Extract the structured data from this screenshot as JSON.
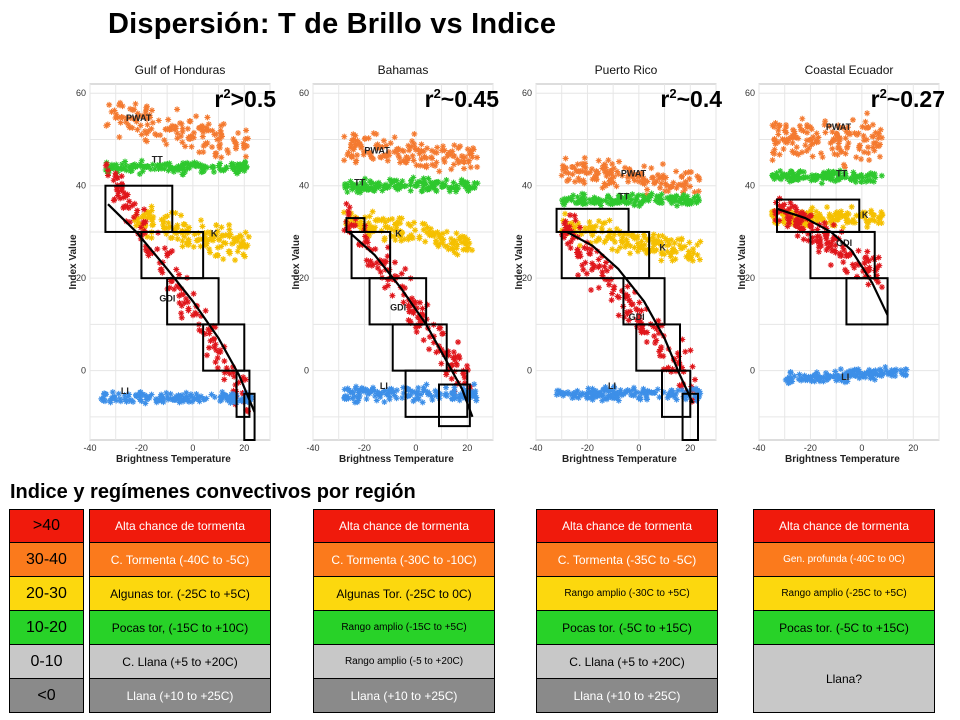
{
  "title": "Dispersión: T de Brillo vs Indice",
  "subtitle": "Indice y regímenes convectivos por región",
  "colors": {
    "pwat": "#f47a30",
    "tt": "#2ec82e",
    "k": "#f5c000",
    "gdi": "#e0161b",
    "li": "#3d8fe8",
    "red": "#f01a0c",
    "orange": "#fb7a1c",
    "yellow": "#fcd80e",
    "green": "#28d228",
    "gray": "#c8c8c8",
    "darkgray": "#8a8a8a"
  },
  "legend": {
    "rows": [
      {
        "label": ">40",
        "color": "red"
      },
      {
        "label": "30-40",
        "color": "orange"
      },
      {
        "label": "20-30",
        "color": "yellow"
      },
      {
        "label": "10-20",
        "color": "green"
      },
      {
        "label": "0-10",
        "color": "gray"
      },
      {
        "label": "<0",
        "color": "darkgray"
      }
    ]
  },
  "regimes": [
    {
      "cells": [
        {
          "text": "Alta chance de tormenta",
          "color": "red",
          "small": false
        },
        {
          "text": "C. Tormenta (-40C to -5C)",
          "color": "orange",
          "small": false
        },
        {
          "text": "Algunas tor.  (-25C to +5C)",
          "color": "yellow",
          "small": false
        },
        {
          "text": "Pocas tor, (-15C to +10C)",
          "color": "green",
          "small": false
        },
        {
          "text": "C. Llana (+5 to +20C)",
          "color": "gray",
          "small": false
        },
        {
          "text": "Llana (+10 to +25C)",
          "color": "darkgray",
          "small": false
        }
      ]
    },
    {
      "cells": [
        {
          "text": "Alta chance de tormenta",
          "color": "red",
          "small": false
        },
        {
          "text": "C. Tormenta (-30C to -10C)",
          "color": "orange",
          "small": false
        },
        {
          "text": "Algunas Tor. (-25C to 0C)",
          "color": "yellow",
          "small": false
        },
        {
          "text": "Rango amplio  (-15C to +5C)",
          "color": "green",
          "small": true
        },
        {
          "text": "Rango amplio  (-5 to +20C)",
          "color": "gray",
          "small": true
        },
        {
          "text": "Llana (+10 to +25C)",
          "color": "darkgray",
          "small": false
        }
      ]
    },
    {
      "cells": [
        {
          "text": "Alta chance de tormenta",
          "color": "red",
          "small": false
        },
        {
          "text": "C. Tormenta (-35C to -5C)",
          "color": "orange",
          "small": false
        },
        {
          "text": "Rango amplio (-30C to +5C)",
          "color": "yellow",
          "small": true
        },
        {
          "text": "Pocas tor.  (-5C to +15C)",
          "color": "green",
          "small": false
        },
        {
          "text": "C. Llana (+5 to +20C)",
          "color": "gray",
          "small": false
        },
        {
          "text": "Llana (+10 to +25C)",
          "color": "darkgray",
          "small": false
        }
      ]
    },
    {
      "cells": [
        {
          "text": "Alta chance de tormenta",
          "color": "red",
          "small": false,
          "rows": 1
        },
        {
          "text": "Gen. profunda  (-40C to 0C)",
          "color": "orange",
          "small": true,
          "rows": 1
        },
        {
          "text": "Rango amplio (-25C to +5C)",
          "color": "yellow",
          "small": true,
          "rows": 1
        },
        {
          "text": "Pocas tor. (-5C to +15C)",
          "color": "green",
          "small": false,
          "rows": 1
        },
        {
          "text": "Llana?",
          "color": "gray",
          "small": false,
          "rows": 2
        }
      ]
    }
  ],
  "chart_data": [
    {
      "type": "scatter",
      "title": "Gulf of Honduras",
      "r2": {
        "prefix": "r",
        "sup": "2",
        "suffix": ">0.5"
      },
      "xlabel": "Brightness Temperature",
      "ylabel": "Index Value",
      "xlim": [
        -40,
        30
      ],
      "ylim": [
        -15,
        62
      ],
      "xticks": [
        -40,
        -20,
        0,
        20
      ],
      "yticks": [
        0,
        20,
        40,
        60
      ],
      "grid": true,
      "clusters": [
        {
          "name": "PWAT",
          "color": "pwat",
          "xmin": -34,
          "xmax": 22,
          "ycenter": 52,
          "yspread": 4,
          "tilt": -0.12,
          "label_x": -26,
          "label_y": 54
        },
        {
          "name": "TT",
          "color": "tt",
          "xmin": -34,
          "xmax": 22,
          "ycenter": 44,
          "yspread": 1.3,
          "tilt": 0,
          "label_x": -16,
          "label_y": 45
        },
        {
          "name": "K",
          "color": "k",
          "xmin": -24,
          "xmax": 22,
          "ycenter": 30,
          "yspread": 3.5,
          "tilt": -0.15,
          "label_x": 7,
          "label_y": 29
        },
        {
          "name": "GDI",
          "color": "gdi",
          "xmin": -34,
          "xmax": 22,
          "ycenter": 18,
          "yspread": 5,
          "tilt": -0.9,
          "label_x": -13,
          "label_y": 15
        },
        {
          "name": "LI",
          "color": "li",
          "xmin": -36,
          "xmax": 24,
          "ycenter": -6,
          "yspread": 1.3,
          "tilt": 0,
          "label_x": -28,
          "label_y": -5
        }
      ],
      "fit": [
        [
          -33,
          36
        ],
        [
          -22,
          30
        ],
        [
          -10,
          22
        ],
        [
          0,
          15
        ],
        [
          10,
          7
        ],
        [
          18,
          -1
        ],
        [
          24,
          -9
        ]
      ],
      "boxes": [
        [
          -34,
          -8,
          30,
          40
        ],
        [
          -20,
          4,
          20,
          30
        ],
        [
          -10,
          10,
          10,
          20
        ],
        [
          4,
          20,
          0,
          10
        ],
        [
          17,
          22,
          -10,
          0
        ],
        [
          20,
          24,
          -15,
          -5
        ]
      ]
    },
    {
      "type": "scatter",
      "title": "Bahamas",
      "r2": {
        "prefix": "r",
        "sup": "2",
        "suffix": "~0.45"
      },
      "xlabel": "Brightness Temperature",
      "ylabel": "Index Value",
      "xlim": [
        -40,
        30
      ],
      "ylim": [
        -15,
        62
      ],
      "xticks": [
        -40,
        -20,
        0,
        20
      ],
      "yticks": [
        0,
        20,
        40,
        60
      ],
      "grid": true,
      "clusters": [
        {
          "name": "PWAT",
          "color": "pwat",
          "xmin": -28,
          "xmax": 24,
          "ycenter": 47,
          "yspread": 3.5,
          "tilt": -0.05,
          "label_x": -20,
          "label_y": 47
        },
        {
          "name": "TT",
          "color": "tt",
          "xmin": -28,
          "xmax": 24,
          "ycenter": 40,
          "yspread": 1.5,
          "tilt": 0,
          "label_x": -24,
          "label_y": 40
        },
        {
          "name": "K",
          "color": "k",
          "xmin": -28,
          "xmax": 22,
          "ycenter": 30,
          "yspread": 3,
          "tilt": -0.1,
          "label_x": -8,
          "label_y": 29
        },
        {
          "name": "GDI",
          "color": "gdi",
          "xmin": -28,
          "xmax": 22,
          "ycenter": 15,
          "yspread": 5.5,
          "tilt": -0.75,
          "label_x": -10,
          "label_y": 13
        },
        {
          "name": "LI",
          "color": "li",
          "xmin": -28,
          "xmax": 24,
          "ycenter": -5,
          "yspread": 1.8,
          "tilt": 0,
          "label_x": -14,
          "label_y": -4
        }
      ],
      "fit": [
        [
          -26,
          30
        ],
        [
          -16,
          25
        ],
        [
          -6,
          18
        ],
        [
          4,
          10
        ],
        [
          12,
          2
        ],
        [
          18,
          -4
        ],
        [
          22,
          -10
        ]
      ],
      "boxes": [
        [
          -27,
          -20,
          30,
          33
        ],
        [
          -25,
          -10,
          20,
          30
        ],
        [
          -18,
          4,
          10,
          20
        ],
        [
          -9,
          12,
          0,
          10
        ],
        [
          -4,
          20,
          -10,
          0
        ],
        [
          9,
          21,
          -12,
          -3
        ]
      ]
    },
    {
      "type": "scatter",
      "title": "Puerto Rico",
      "r2": {
        "prefix": "r",
        "sup": "2",
        "suffix": "~0.4"
      },
      "xlabel": "Brightness Temperature",
      "ylabel": "Index Value",
      "xlim": [
        -40,
        30
      ],
      "ylim": [
        -15,
        62
      ],
      "xticks": [
        -40,
        -20,
        0,
        20
      ],
      "yticks": [
        0,
        20,
        40,
        60
      ],
      "grid": true,
      "clusters": [
        {
          "name": "PWAT",
          "color": "pwat",
          "xmin": -30,
          "xmax": 24,
          "ycenter": 42,
          "yspread": 3,
          "tilt": -0.05,
          "label_x": -7,
          "label_y": 42
        },
        {
          "name": "TT",
          "color": "tt",
          "xmin": -30,
          "xmax": 24,
          "ycenter": 37,
          "yspread": 1.3,
          "tilt": 0,
          "label_x": -8,
          "label_y": 37
        },
        {
          "name": "K",
          "color": "k",
          "xmin": -30,
          "xmax": 24,
          "ycenter": 28,
          "yspread": 3,
          "tilt": -0.1,
          "label_x": 8,
          "label_y": 26
        },
        {
          "name": "GDI",
          "color": "gdi",
          "xmin": -30,
          "xmax": 22,
          "ycenter": 14,
          "yspread": 5.5,
          "tilt": -0.65,
          "label_x": -4,
          "label_y": 11
        },
        {
          "name": "LI",
          "color": "li",
          "xmin": -32,
          "xmax": 24,
          "ycenter": -5,
          "yspread": 1.5,
          "tilt": 0,
          "label_x": -12,
          "label_y": -4
        }
      ],
      "fit": [
        [
          -28,
          30
        ],
        [
          -18,
          27
        ],
        [
          -8,
          22
        ],
        [
          2,
          15
        ],
        [
          10,
          7
        ],
        [
          16,
          -1
        ],
        [
          21,
          -7
        ]
      ],
      "boxes": [
        [
          -32,
          -4,
          30,
          35
        ],
        [
          -30,
          4,
          20,
          30
        ],
        [
          -6,
          10,
          10,
          20
        ],
        [
          -1,
          16,
          0,
          10
        ],
        [
          9,
          20,
          -10,
          0
        ],
        [
          17,
          23,
          -15,
          -5
        ]
      ]
    },
    {
      "type": "scatter",
      "title": "Coastal Ecuador",
      "r2": {
        "prefix": "r",
        "sup": "2",
        "suffix": "~0.27"
      },
      "xlabel": "Brightness Temperature",
      "ylabel": "Index Value",
      "xlim": [
        -40,
        30
      ],
      "ylim": [
        -15,
        62
      ],
      "xticks": [
        -40,
        -20,
        0,
        20
      ],
      "yticks": [
        0,
        20,
        40,
        60
      ],
      "grid": true,
      "clusters": [
        {
          "name": "PWAT",
          "color": "pwat",
          "xmin": -35,
          "xmax": 8,
          "ycenter": 50,
          "yspread": 5,
          "tilt": 0,
          "label_x": -14,
          "label_y": 52
        },
        {
          "name": "TT",
          "color": "tt",
          "xmin": -35,
          "xmax": 8,
          "ycenter": 42,
          "yspread": 1.3,
          "tilt": 0,
          "label_x": -10,
          "label_y": 42
        },
        {
          "name": "K",
          "color": "k",
          "xmin": -35,
          "xmax": 8,
          "ycenter": 33,
          "yspread": 2,
          "tilt": 0,
          "label_x": 0,
          "label_y": 33
        },
        {
          "name": "GDI",
          "color": "gdi",
          "xmin": -34,
          "xmax": 8,
          "ycenter": 28,
          "yspread": 4,
          "tilt": -0.35,
          "label_x": -10,
          "label_y": 27
        },
        {
          "name": "LI",
          "color": "li",
          "xmin": -30,
          "xmax": 18,
          "ycenter": -1,
          "yspread": 1.3,
          "tilt": 0.04,
          "label_x": -8,
          "label_y": -2
        }
      ],
      "fit": [
        [
          -33,
          35
        ],
        [
          -22,
          33
        ],
        [
          -12,
          30
        ],
        [
          -4,
          26
        ],
        [
          4,
          19
        ],
        [
          10,
          12
        ]
      ],
      "boxes": [
        [
          -33,
          -1,
          30,
          37
        ],
        [
          -20,
          5,
          20,
          30
        ],
        [
          -6,
          10,
          10,
          20
        ]
      ]
    }
  ]
}
